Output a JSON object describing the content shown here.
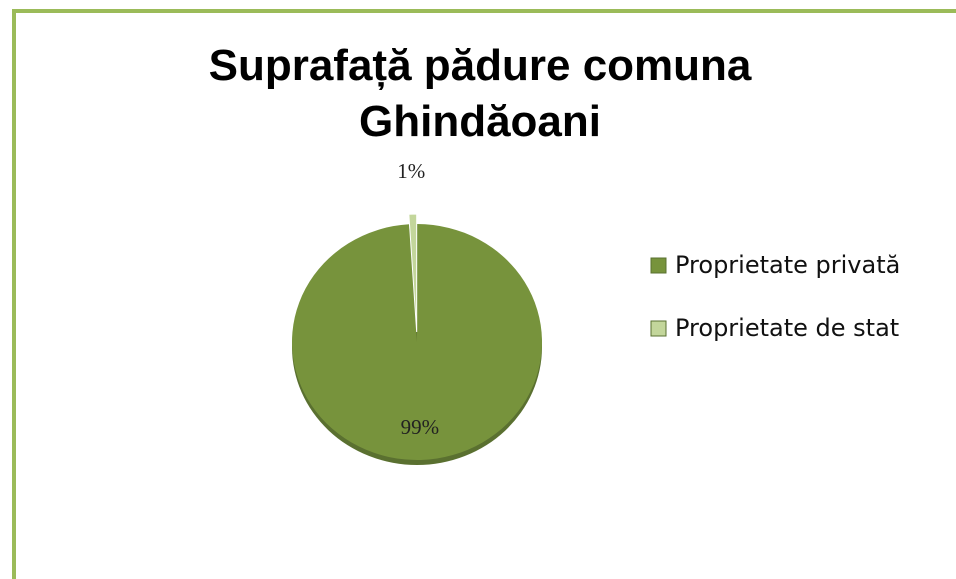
{
  "chart_data": {
    "type": "pie",
    "title": "Suprafață pădure comuna Ghindăoani",
    "categories": [
      "Proprietate privată",
      "Proprietate de stat"
    ],
    "values": [
      99,
      1
    ],
    "value_labels": [
      "99%",
      "1%"
    ],
    "colors": [
      "#77933c",
      "#c3d69b"
    ],
    "legend": "right"
  }
}
